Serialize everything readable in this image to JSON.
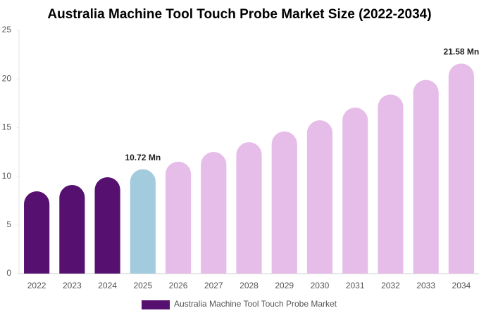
{
  "chart_data": {
    "type": "bar",
    "title": "Australia Machine Tool Touch Probe Market Size (2022-2034)",
    "categories": [
      "2022",
      "2023",
      "2024",
      "2025",
      "2026",
      "2027",
      "2028",
      "2029",
      "2030",
      "2031",
      "2032",
      "2033",
      "2034"
    ],
    "series": [
      {
        "name": "Australia Machine Tool Touch Probe Market",
        "color": "#561070",
        "values": [
          8.45,
          9.1,
          9.9,
          10.72,
          11.5,
          12.5,
          13.5,
          14.6,
          15.75,
          17.05,
          18.4,
          19.9,
          21.58
        ],
        "value_labels": [
          null,
          null,
          null,
          "10.72 Mn",
          null,
          null,
          null,
          null,
          null,
          null,
          null,
          null,
          "21.58 Mn"
        ],
        "colors": [
          "#561070",
          "#561070",
          "#561070",
          "#a3cbde",
          "#e6bde8",
          "#e6bde8",
          "#e6bde8",
          "#e6bde8",
          "#e6bde8",
          "#e6bde8",
          "#e6bde8",
          "#e6bde8",
          "#e6bde8"
        ]
      }
    ],
    "ylim": [
      0,
      25
    ],
    "yticks": [
      0,
      5,
      10,
      15,
      20,
      25
    ],
    "grid": false
  }
}
